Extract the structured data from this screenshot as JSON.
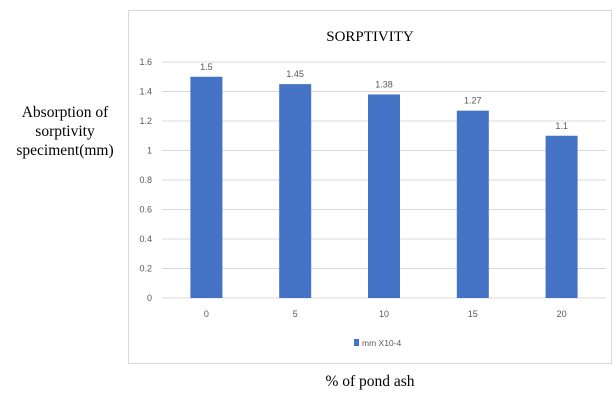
{
  "chart_data": {
    "type": "bar",
    "title": "SORPTIVITY",
    "ylabel": [
      "Absorption of",
      "sorptivity",
      "speciment(mm)"
    ],
    "xlabel": "% of pond ash",
    "categories": [
      "0",
      "5",
      "10",
      "15",
      "20"
    ],
    "series": [
      {
        "name": "mm X10-4",
        "values": [
          1.5,
          1.45,
          1.38,
          1.27,
          1.1
        ],
        "data_labels": [
          "1.5",
          "1.45",
          "1.38",
          "1.27",
          "1.1"
        ],
        "color": "#4472c4"
      }
    ],
    "ylim": [
      0,
      1.6
    ],
    "yticks": [
      "0",
      "0.2",
      "0.4",
      "0.6",
      "0.8",
      "1",
      "1.2",
      "1.4",
      "1.6"
    ],
    "grid": true,
    "legend_position": "bottom",
    "colors": {
      "bar": "#4472c4",
      "grid": "#d9d9d9",
      "tick_text": "#595959",
      "title_text": "#000000"
    }
  }
}
